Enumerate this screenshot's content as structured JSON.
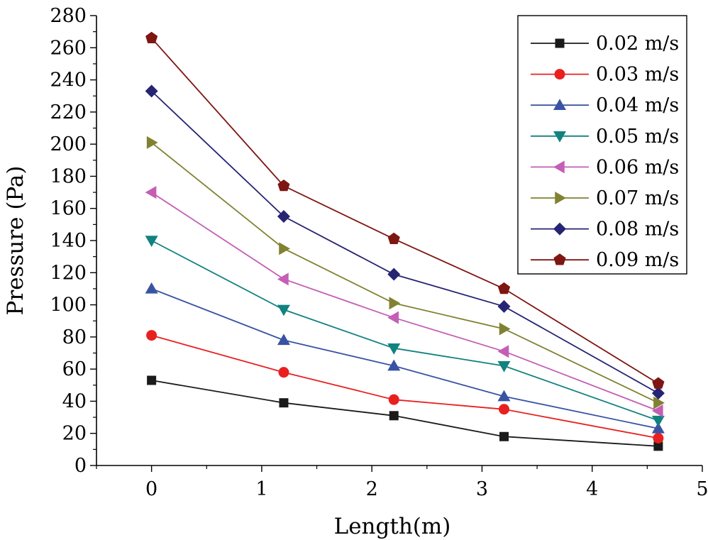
{
  "chart_data": {
    "type": "line",
    "title": "",
    "xlabel": "Length(m)",
    "ylabel": "Pressure (Pa)",
    "xlim": [
      -0.5,
      5
    ],
    "ylim": [
      0,
      280
    ],
    "x_ticks": [
      0,
      1,
      2,
      3,
      4,
      5
    ],
    "y_ticks": [
      0,
      20,
      40,
      60,
      80,
      100,
      120,
      140,
      160,
      180,
      200,
      220,
      240,
      260,
      280
    ],
    "x_tick_labels": [
      "0",
      "1",
      "2",
      "3",
      "4",
      "5"
    ],
    "y_tick_labels": [
      "0",
      "20",
      "40",
      "60",
      "80",
      "100",
      "120",
      "140",
      "160",
      "180",
      "200",
      "220",
      "240",
      "260",
      "280"
    ],
    "grid": false,
    "legend_position": "top-right",
    "x": [
      0,
      1.2,
      2.2,
      3.2,
      4.6
    ],
    "series": [
      {
        "name": "0.02 m/s",
        "color": "#1a1a1a",
        "marker": "square",
        "values": [
          53,
          39,
          31,
          18,
          12
        ]
      },
      {
        "name": "0.03 m/s",
        "color": "#e8211f",
        "marker": "circle",
        "values": [
          81,
          58,
          41,
          35,
          17
        ]
      },
      {
        "name": "0.04 m/s",
        "color": "#3953a4",
        "marker": "triangle-up",
        "values": [
          110,
          78,
          62,
          43,
          23
        ]
      },
      {
        "name": "0.05 m/s",
        "color": "#128280",
        "marker": "triangle-down",
        "values": [
          140,
          97,
          73,
          62,
          28
        ]
      },
      {
        "name": "0.06 m/s",
        "color": "#c45fb5",
        "marker": "triangle-left",
        "values": [
          170,
          116,
          92,
          71,
          34
        ]
      },
      {
        "name": "0.07 m/s",
        "color": "#818231",
        "marker": "triangle-right",
        "values": [
          201,
          135,
          101,
          85,
          39
        ]
      },
      {
        "name": "0.08 m/s",
        "color": "#262473",
        "marker": "diamond",
        "values": [
          233,
          155,
          119,
          99,
          45
        ]
      },
      {
        "name": "0.09 m/s",
        "color": "#7e1612",
        "marker": "pentagon",
        "values": [
          266,
          174,
          141,
          110,
          51
        ]
      }
    ]
  }
}
